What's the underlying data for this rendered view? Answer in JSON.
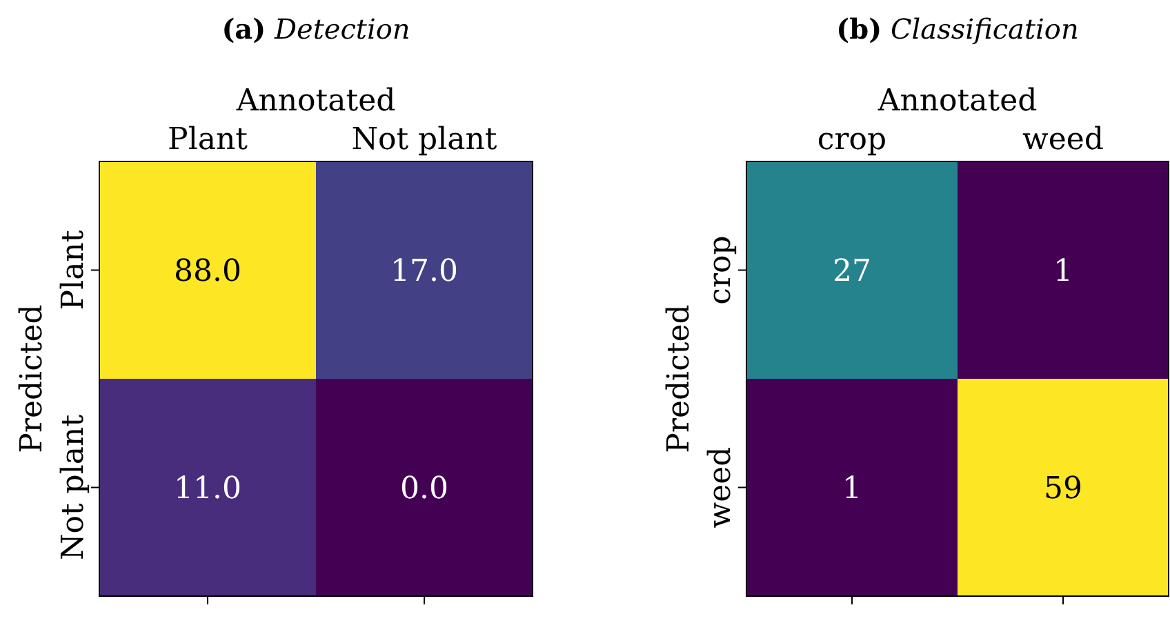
{
  "chart_data": [
    {
      "type": "heatmap",
      "title": "(a) Detection",
      "xlabel": "Annotated",
      "ylabel": "Predicted",
      "categories": [
        "Plant",
        "Not plant"
      ],
      "y_categories": [
        "Plant",
        "Not plant"
      ],
      "cells": [
        [
          88,
          17
        ],
        [
          11,
          0
        ]
      ],
      "cell_labels": [
        [
          "88.0",
          "17.0"
        ],
        [
          "11.0",
          "0.0"
        ]
      ]
    },
    {
      "type": "heatmap",
      "title": "(b) Classification",
      "xlabel": "Annotated",
      "ylabel": "Predicted",
      "categories": [
        "crop",
        "weed"
      ],
      "y_categories": [
        "crop",
        "weed"
      ],
      "cells": [
        [
          27,
          1
        ],
        [
          1,
          59
        ]
      ],
      "cell_labels": [
        [
          "27",
          "1"
        ],
        [
          "1",
          "59"
        ]
      ]
    }
  ]
}
